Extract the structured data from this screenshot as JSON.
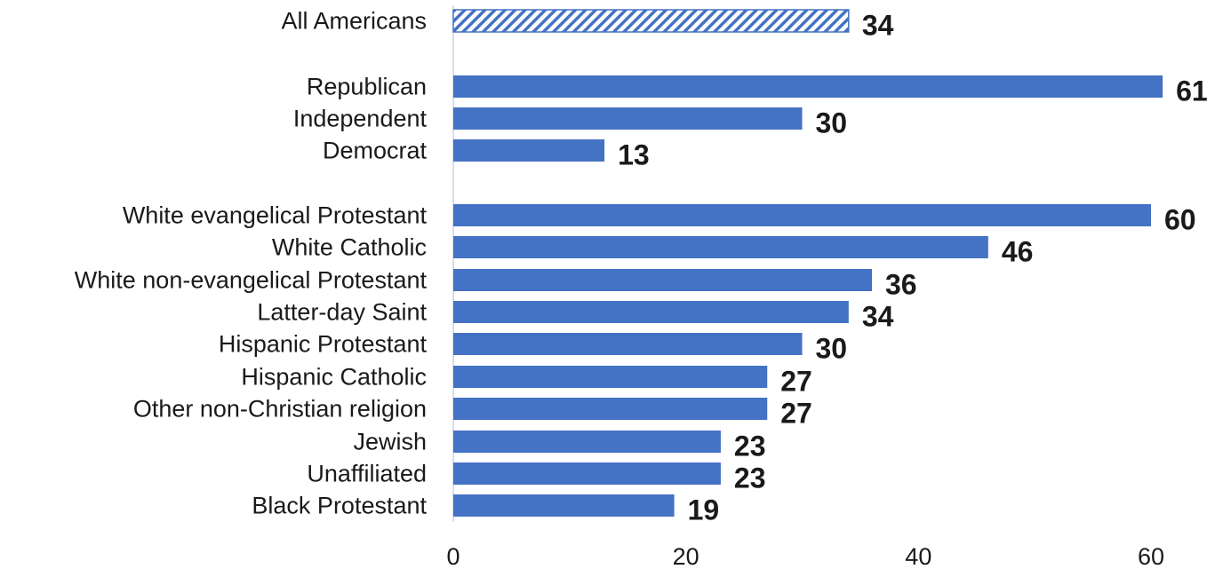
{
  "chart_data": {
    "type": "bar",
    "orientation": "horizontal",
    "categories": [
      "All Americans",
      "Republican",
      "Independent",
      "Democrat",
      "White evangelical Protestant",
      "White Catholic",
      "White non-evangelical Protestant",
      "Latter-day Saint",
      "Hispanic Protestant",
      "Hispanic Catholic",
      "Other non-Christian religion",
      "Jewish",
      "Unaffiliated",
      "Black Protestant"
    ],
    "values": [
      34,
      61,
      30,
      13,
      60,
      46,
      36,
      34,
      30,
      27,
      27,
      23,
      23,
      19
    ],
    "groups": [
      {
        "categories": [
          "All Americans"
        ]
      },
      {
        "categories": [
          "Republican",
          "Independent",
          "Democrat"
        ]
      },
      {
        "categories": [
          "White evangelical Protestant",
          "White Catholic",
          "White non-evangelical Protestant",
          "Latter-day Saint",
          "Hispanic Protestant",
          "Hispanic Catholic",
          "Other non-Christian religion",
          "Jewish",
          "Unaffiliated",
          "Black Protestant"
        ]
      }
    ],
    "highlighted": [
      "All Americans"
    ],
    "title": "",
    "xlabel": "",
    "ylabel": "",
    "xlim": [
      0,
      61
    ],
    "xticks": [
      0,
      20,
      40,
      60
    ],
    "grid": false,
    "bar_color": "#4472c4",
    "highlight_style": "diagonal-hatch",
    "text_color": "#1a1a1a"
  }
}
